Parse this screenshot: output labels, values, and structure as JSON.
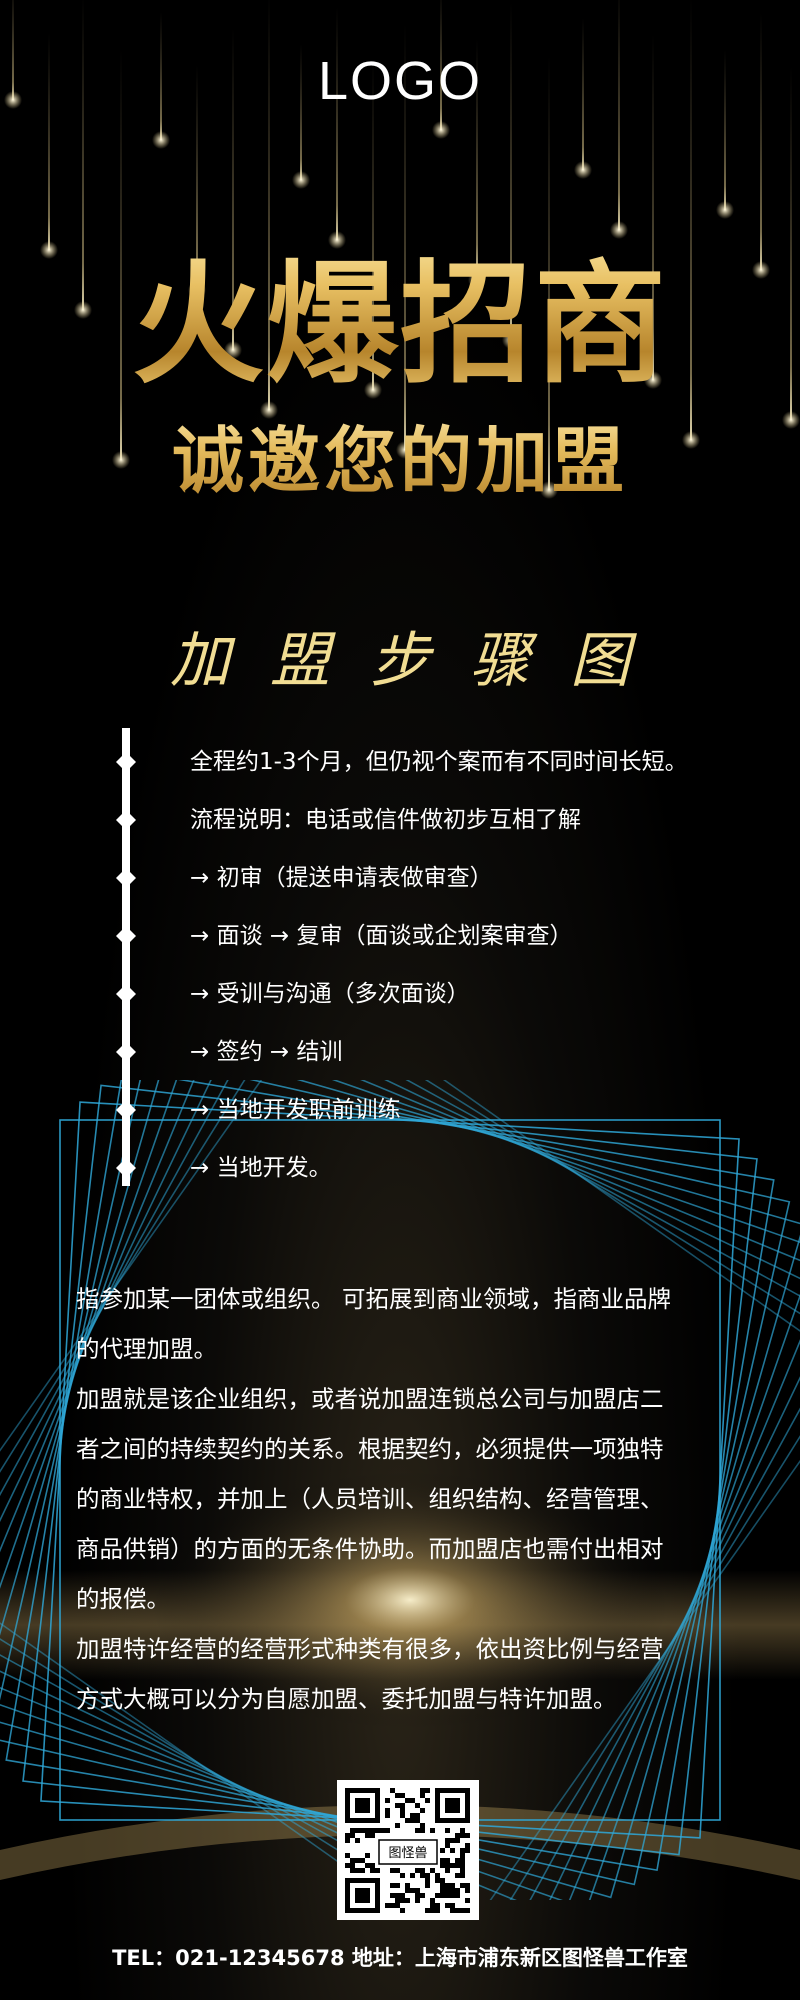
{
  "header": {
    "logo": "LOGO"
  },
  "hero": {
    "title": "火爆招商",
    "subtitle": "诚邀您的加盟"
  },
  "steps": {
    "title": "加盟步骤图",
    "items": [
      "全程约1-3个月，但仍视个案而有不同时间长短。",
      "流程说明：电话或信件做初步互相了解",
      "→ 初审（提送申请表做审查）",
      "→ 面谈 → 复审（面谈或企划案审查）",
      "→ 受训与沟通（多次面谈）",
      "→ 签约 → 结训",
      "→ 当地开发职前训练",
      "→ 当地开发。"
    ]
  },
  "description": {
    "lines": [
      "指参加某一团体或组织。 可拓展到商业领域，指商业品牌",
      "的代理加盟。",
      "加盟就是该企业组织，或者说加盟连锁总公司与加盟店二",
      "者之间的持续契约的关系。根据契约，必须提供一项独特",
      "的商业特权，并加上（人员培训、组织结构、经营管理、",
      "商品供销）的方面的无条件协助。而加盟店也需付出相对",
      "的报偿。",
      "加盟特许经营的经营形式种类有很多，依出资比例与经营",
      "方式大概可以分为自愿加盟、委托加盟与特许加盟。"
    ]
  },
  "qr": {
    "center_text": "图怪兽"
  },
  "footer": {
    "text": "TEL：021-12345678 地址：上海市浦东新区图怪兽工作室"
  },
  "colors": {
    "gold": "#e4bb5d",
    "frame": "#2fa8d8",
    "background": "#000000"
  }
}
